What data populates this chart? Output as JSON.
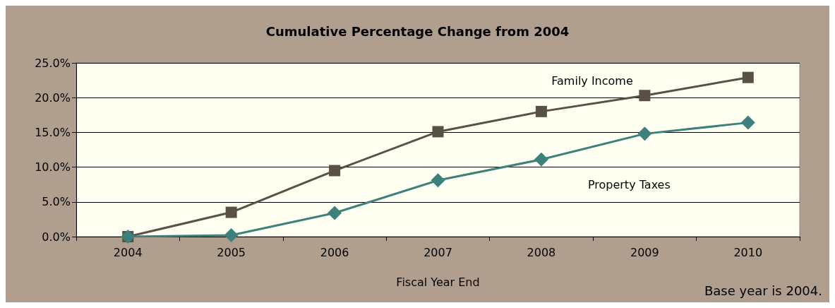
{
  "chart_data": {
    "type": "line",
    "title": "Cumulative Percentage Change from 2004",
    "xlabel": "Fiscal Year End",
    "categories": [
      "2004",
      "2005",
      "2006",
      "2007",
      "2008",
      "2009",
      "2010"
    ],
    "series": [
      {
        "name": "Family Income",
        "color": "#5a5146",
        "marker": "square",
        "values": [
          0,
          3.5,
          9.5,
          15.1,
          18.0,
          20.3,
          22.9
        ]
      },
      {
        "name": "Property Taxes",
        "color": "#3e807b",
        "marker": "diamond",
        "values": [
          0,
          0.2,
          3.4,
          8.1,
          11.1,
          14.8,
          16.4
        ]
      }
    ],
    "ylim": [
      0,
      25
    ],
    "yticks": [
      {
        "value": 0,
        "label": "0.0%"
      },
      {
        "value": 5,
        "label": "5.0%"
      },
      {
        "value": 10,
        "label": "10.0%"
      },
      {
        "value": 15,
        "label": "15.0%"
      },
      {
        "value": 20,
        "label": "20.0%"
      },
      {
        "value": 25,
        "label": "25.0%"
      }
    ],
    "grid": "y",
    "legend": false,
    "line_style": "solid",
    "annotations": [
      "Base year is 2004."
    ]
  }
}
